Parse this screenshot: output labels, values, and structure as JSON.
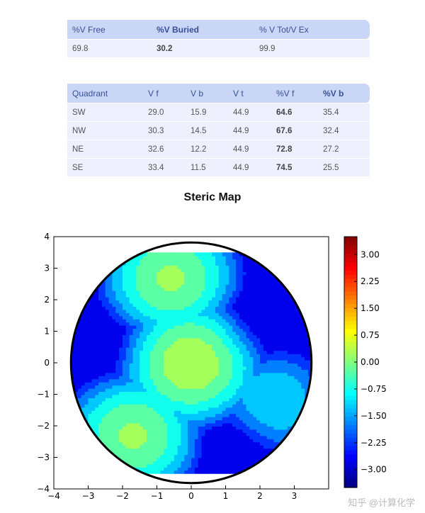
{
  "volume_table": {
    "headers": [
      "%V Free",
      "%V Buried",
      "% V Tot/V Ex"
    ],
    "row": [
      "69.8",
      "30.2",
      "99.9"
    ]
  },
  "quadrant_table": {
    "headers": [
      "Quadrant",
      "V f",
      "V b",
      "V t",
      "%V f",
      "%V b"
    ],
    "rows": [
      [
        "SW",
        "29.0",
        "15.9",
        "44.9",
        "64.6",
        "35.4"
      ],
      [
        "NW",
        "30.3",
        "14.5",
        "44.9",
        "67.6",
        "32.4"
      ],
      [
        "NE",
        "32.6",
        "12.2",
        "44.9",
        "72.8",
        "27.2"
      ],
      [
        "SE",
        "33.4",
        "11.5",
        "44.9",
        "74.5",
        "25.5"
      ]
    ]
  },
  "chart_data": {
    "type": "heatmap",
    "title": "Steric Map",
    "xlabel": "",
    "ylabel": "",
    "xlim": [
      -4,
      4
    ],
    "ylim": [
      -4,
      4
    ],
    "x_ticks": [
      "−4",
      "−3",
      "−2",
      "−1",
      "0",
      "1",
      "2",
      "3"
    ],
    "y_ticks": [
      "4",
      "3",
      "2",
      "1",
      "0",
      "−1",
      "−2",
      "−3",
      "−4"
    ],
    "colorbar_range": [
      -3.5,
      3.5
    ],
    "colorbar_ticks": [
      "3.00",
      "2.25",
      "1.50",
      "0.75",
      "0.00",
      "−0.75",
      "−1.50",
      "−2.25",
      "−3.00"
    ],
    "colormap_stops": [
      "#00007f",
      "#0000ff",
      "#007fff",
      "#00ffff",
      "#7fff7f",
      "#ffff00",
      "#ff7f00",
      "#ff0000",
      "#7f0000"
    ],
    "peaks": [
      {
        "x": 0.0,
        "y": 0.0,
        "value": 0.4
      },
      {
        "x": -0.6,
        "y": 2.7,
        "value": 0.1
      },
      {
        "x": -1.7,
        "y": -2.3,
        "value": 0.1
      },
      {
        "x": 2.4,
        "y": -1.2,
        "value": -1.0
      }
    ],
    "low_regions": [
      {
        "x": 1.8,
        "y": 1.3,
        "value": -2.4
      },
      {
        "x": -2.4,
        "y": 0.6,
        "value": -2.0
      },
      {
        "x": 1.2,
        "y": -2.7,
        "value": -2.6
      }
    ],
    "sphere_radius": 3.5,
    "contour_levels": [
      -2.5,
      -2.0,
      -1.5,
      -1.0,
      -0.5,
      0.0
    ]
  },
  "watermark": "知乎 @计算化学"
}
